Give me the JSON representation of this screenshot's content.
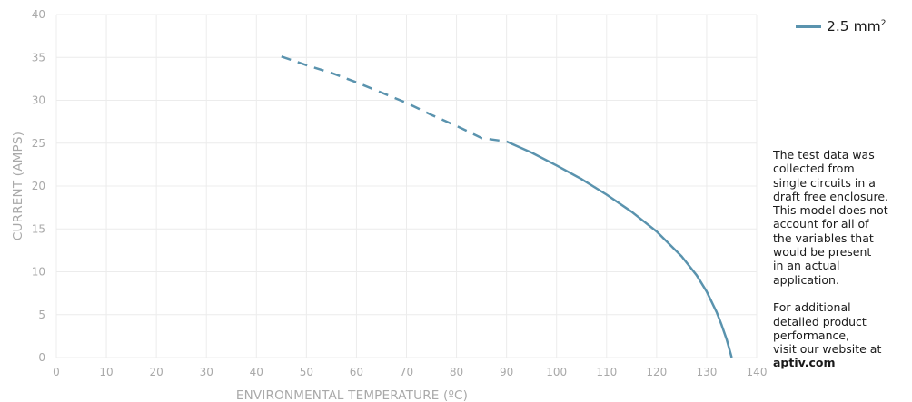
{
  "chart_data": {
    "type": "line",
    "xlabel": "ENVIRONMENTAL TEMPERATURE (ºC)",
    "ylabel": "CURRENT (AMPS)",
    "xlim": [
      0,
      140
    ],
    "ylim": [
      0,
      40
    ],
    "x_ticks": [
      "0",
      "10",
      "20",
      "30",
      "40",
      "50",
      "60",
      "70",
      "80",
      "90",
      "100",
      "110",
      "120",
      "130",
      "140"
    ],
    "y_ticks": [
      "0",
      "5",
      "10",
      "15",
      "20",
      "25",
      "30",
      "35",
      "40"
    ],
    "grid": true,
    "legend_position": "top-right",
    "series": [
      {
        "name": "2.5 mm²",
        "color": "#5a93ae",
        "dashed_segment": {
          "x": [
            45,
            50,
            55,
            60,
            65,
            70,
            75,
            80,
            85,
            90
          ],
          "y": [
            35.1,
            34.1,
            33.2,
            32.1,
            30.9,
            29.7,
            28.3,
            27.0,
            25.6,
            25.2
          ]
        },
        "solid_segment": {
          "x": [
            90,
            95,
            100,
            105,
            110,
            115,
            120,
            125,
            128,
            130,
            132,
            133,
            134,
            135
          ],
          "y": [
            25.2,
            23.9,
            22.4,
            20.8,
            19.0,
            17.0,
            14.7,
            11.8,
            9.6,
            7.7,
            5.3,
            3.8,
            2.1,
            0
          ]
        }
      }
    ]
  },
  "legend": {
    "label": "2.5 mm",
    "superscript": "2"
  },
  "note": {
    "text": "The test data was\ncollected from\nsingle circuits in a\ndraft free enclosure.\nThis model does not\naccount for all of\nthe variables that\nwould be present\nin an actual\napplication.\n\nFor additional\ndetailed product\nperformance,\nvisit our website at",
    "link": "aptiv.com"
  }
}
